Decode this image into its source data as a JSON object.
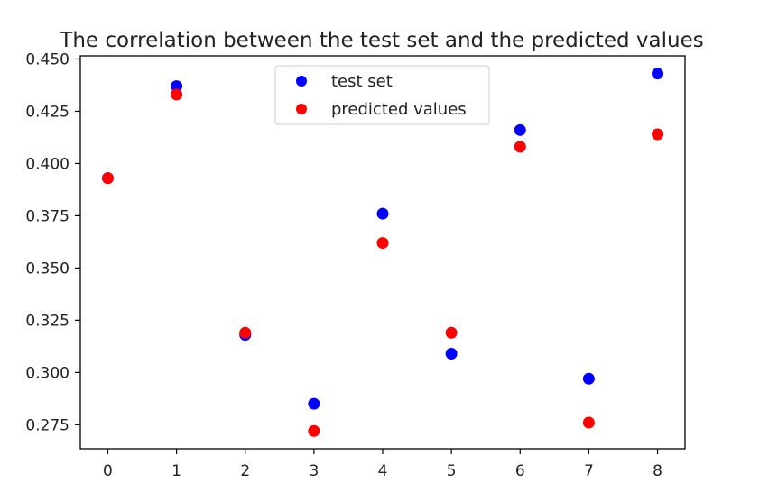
{
  "chart_data": {
    "type": "scatter",
    "title": "The correlation between the test set and the predicted values",
    "xlabel": "",
    "ylabel": "",
    "xlim": [
      -0.4,
      8.4
    ],
    "ylim": [
      0.2635,
      0.4515
    ],
    "xticks": [
      0,
      1,
      2,
      3,
      4,
      5,
      6,
      7,
      8
    ],
    "xtick_labels": [
      "0",
      "1",
      "2",
      "3",
      "4",
      "5",
      "6",
      "7",
      "8"
    ],
    "yticks": [
      0.275,
      0.3,
      0.325,
      0.35,
      0.375,
      0.4,
      0.425,
      0.45
    ],
    "ytick_labels": [
      "0.275",
      "0.300",
      "0.325",
      "0.350",
      "0.375",
      "0.400",
      "0.425",
      "0.450"
    ],
    "grid": false,
    "legend_position": "upper-center",
    "series": [
      {
        "name": "test set",
        "color": "#0000ff",
        "x": [
          0,
          1,
          2,
          3,
          4,
          5,
          6,
          7,
          8
        ],
        "y": [
          0.393,
          0.437,
          0.318,
          0.285,
          0.376,
          0.309,
          0.416,
          0.297,
          0.443
        ]
      },
      {
        "name": "predicted values",
        "color": "#ff0000",
        "x": [
          0,
          1,
          2,
          3,
          4,
          5,
          6,
          7,
          8
        ],
        "y": [
          0.393,
          0.433,
          0.319,
          0.272,
          0.362,
          0.319,
          0.408,
          0.276,
          0.414
        ]
      }
    ]
  }
}
